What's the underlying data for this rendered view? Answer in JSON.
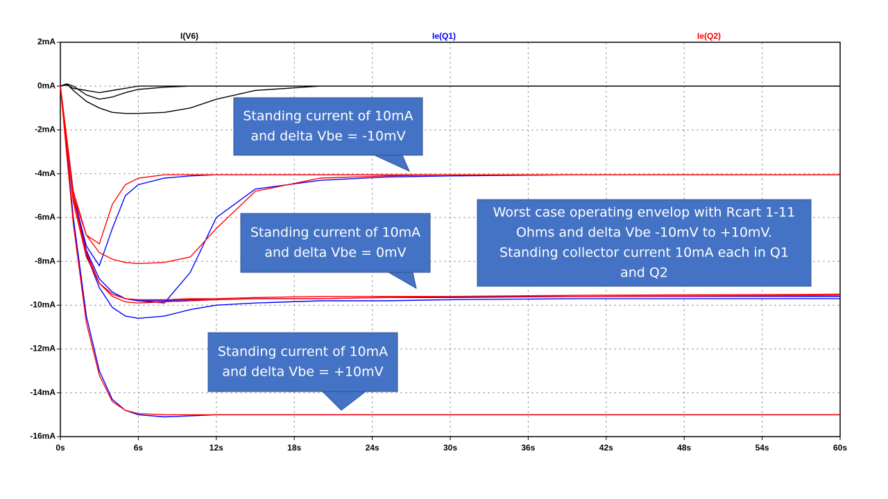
{
  "chart_data": {
    "type": "line",
    "x": [
      0,
      0.5,
      1,
      2,
      3,
      4,
      5,
      6,
      8,
      10,
      12,
      15,
      20,
      25,
      30,
      40,
      60
    ],
    "xlim": [
      0,
      60
    ],
    "xticks": [
      {
        "value": 0,
        "label": "0s"
      },
      {
        "value": 6,
        "label": "6s"
      },
      {
        "value": 12,
        "label": "12s"
      },
      {
        "value": 18,
        "label": "18s"
      },
      {
        "value": 24,
        "label": "24s"
      },
      {
        "value": 30,
        "label": "30s"
      },
      {
        "value": 36,
        "label": "36s"
      },
      {
        "value": 42,
        "label": "42s"
      },
      {
        "value": 48,
        "label": "48s"
      },
      {
        "value": 54,
        "label": "54s"
      },
      {
        "value": 60,
        "label": "60s"
      }
    ],
    "ylim": [
      -16,
      2
    ],
    "yticks": [
      {
        "value": 2,
        "label": "2mA"
      },
      {
        "value": 0,
        "label": "0mA"
      },
      {
        "value": -2,
        "label": "-2mA"
      },
      {
        "value": -4,
        "label": "-4mA"
      },
      {
        "value": -6,
        "label": "-6mA"
      },
      {
        "value": -8,
        "label": "-8mA"
      },
      {
        "value": -10,
        "label": "-10mA"
      },
      {
        "value": -12,
        "label": "-12mA"
      },
      {
        "value": -14,
        "label": "-14mA"
      },
      {
        "value": -16,
        "label": "-16mA"
      }
    ],
    "grid": true,
    "series": [
      {
        "name": "I(V6)",
        "color": "#000000",
        "runs": [
          [
            0,
            0.1,
            -0.2,
            -0.7,
            -1.0,
            -1.2,
            -1.25,
            -1.25,
            -1.2,
            -1.0,
            -0.6,
            -0.2,
            0,
            0,
            0,
            0,
            0
          ],
          [
            0,
            0.1,
            0,
            -0.4,
            -0.6,
            -0.5,
            -0.3,
            -0.15,
            -0.05,
            0,
            0,
            0,
            0,
            0,
            0,
            0,
            0
          ],
          [
            0,
            0.05,
            -0.1,
            -0.2,
            -0.3,
            -0.2,
            -0.1,
            0,
            0,
            0,
            0,
            0,
            0,
            0,
            0,
            0,
            0
          ]
        ]
      },
      {
        "name": "Ie(Q1)",
        "color": "#0000ff",
        "runs": [
          [
            0,
            -3,
            -6,
            -10.5,
            -13,
            -14.3,
            -14.8,
            -15,
            -15.1,
            -15.05,
            -15,
            -15,
            -15,
            -15,
            -15,
            -15,
            -15
          ],
          [
            0,
            -2.5,
            -5,
            -7.5,
            -8.8,
            -9.4,
            -9.7,
            -9.8,
            -9.8,
            -9.75,
            -9.75,
            -9.7,
            -9.7,
            -9.65,
            -9.65,
            -9.6,
            -9.6
          ],
          [
            0,
            -2.5,
            -5,
            -7.7,
            -9.2,
            -10.1,
            -10.5,
            -10.6,
            -10.5,
            -10.2,
            -10.0,
            -9.9,
            -9.8,
            -9.8,
            -9.75,
            -9.7,
            -9.7
          ],
          [
            0,
            -2.5,
            -5,
            -7.3,
            -8.2,
            -6.5,
            -5,
            -4.5,
            -4.2,
            -4.1,
            -4.05,
            -4.05,
            -4.05,
            -4.05,
            -4.05,
            -4.05,
            -4.05
          ],
          [
            0,
            -2.5,
            -5,
            -7.6,
            -9,
            -9.5,
            -9.7,
            -9.8,
            -9.9,
            -8.5,
            -6,
            -4.7,
            -4.3,
            -4.15,
            -4.1,
            -4.05,
            -4.05
          ]
        ]
      },
      {
        "name": "Ie(Q2)",
        "color": "#ff0000",
        "runs": [
          [
            0,
            -3.2,
            -6.3,
            -10.8,
            -13.2,
            -14.4,
            -14.8,
            -14.95,
            -15,
            -15,
            -15,
            -15,
            -15,
            -15,
            -15,
            -15,
            -15
          ],
          [
            0,
            -2.7,
            -5.3,
            -7.8,
            -9,
            -9.5,
            -9.7,
            -9.75,
            -9.75,
            -9.7,
            -9.7,
            -9.65,
            -9.6,
            -9.6,
            -9.6,
            -9.55,
            -9.5
          ],
          [
            0,
            -2.5,
            -5,
            -6.8,
            -7.6,
            -7.9,
            -8.05,
            -8.1,
            -8.05,
            -7.8,
            -6.5,
            -4.8,
            -4.2,
            -4.1,
            -4.05,
            -4.05,
            -4.05
          ],
          [
            0,
            -2.4,
            -4.8,
            -6.8,
            -7.2,
            -5.4,
            -4.5,
            -4.2,
            -4.05,
            -4.05,
            -4.05,
            -4.05,
            -4.05,
            -4.05,
            -4.05,
            -4.05,
            -4.05
          ],
          [
            0,
            -2.6,
            -5.1,
            -7.6,
            -9,
            -9.6,
            -9.85,
            -9.9,
            -9.85,
            -9.8,
            -9.75,
            -9.7,
            -9.7,
            -9.65,
            -9.6,
            -9.6,
            -9.55
          ]
        ]
      }
    ],
    "annotations": [
      {
        "lines": [
          "Standing current of 10mA",
          "and delta Vbe  = -10mV"
        ]
      },
      {
        "lines": [
          "Standing current of 10mA",
          "and delta Vbe = 0mV"
        ]
      },
      {
        "lines": [
          "Worst case operating envelop with Rcart 1-11",
          "Ohms and delta Vbe -10mV to +10mV.",
          "Standing collector current 10mA  each in Q1",
          "and Q2"
        ]
      },
      {
        "lines": [
          "Standing current of 10mA",
          "and delta Vbe  = +10mV"
        ]
      }
    ]
  }
}
